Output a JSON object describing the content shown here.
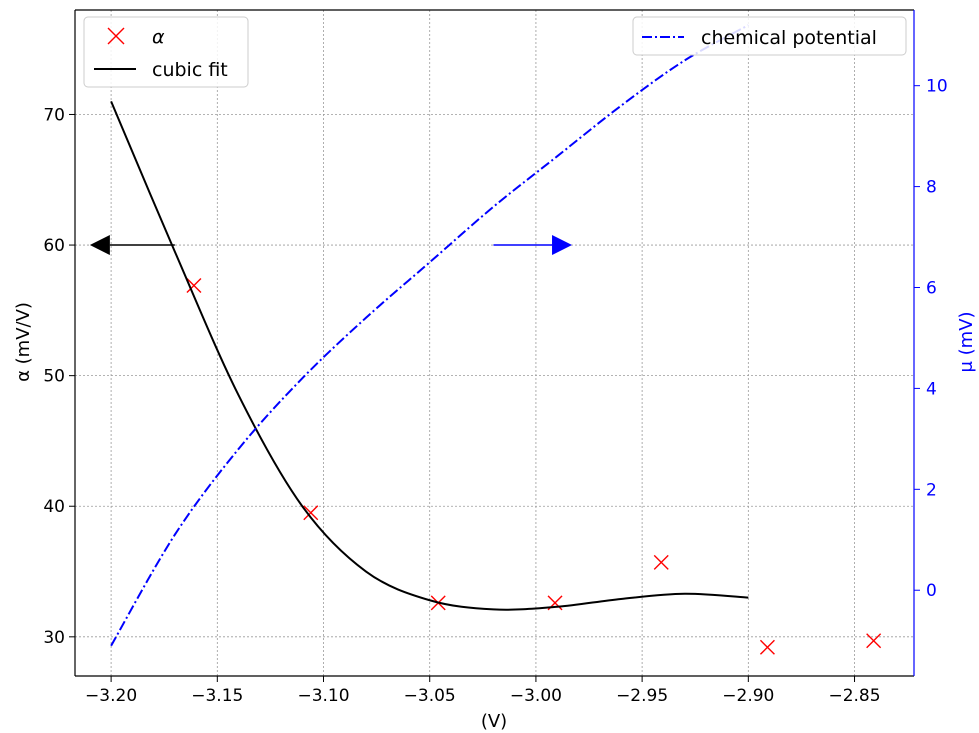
{
  "chart_data": {
    "type": "scatter",
    "xlabel": "(V)",
    "ylabel_left": "α (mV/V)",
    "ylabel_right": "μ (mV)",
    "xlim": [
      -3.217,
      -2.822
    ],
    "ylim_left": [
      27,
      78
    ],
    "ylim_right": [
      -1.7,
      11.5
    ],
    "x_ticks": [
      -3.2,
      -3.15,
      -3.1,
      -3.05,
      -3.0,
      -2.95,
      -2.9,
      -2.85
    ],
    "x_tick_labels": [
      "−3.20",
      "−3.15",
      "−3.10",
      "−3.05",
      "−3.00",
      "−2.95",
      "−2.90",
      "−2.85"
    ],
    "y_left_ticks": [
      30,
      40,
      50,
      60,
      70
    ],
    "y_left_tick_labels": [
      "30",
      "40",
      "50",
      "60",
      "70"
    ],
    "y_right_ticks": [
      0,
      2,
      4,
      6,
      8,
      10
    ],
    "y_right_tick_labels": [
      "0",
      "2",
      "4",
      "6",
      "8",
      "10"
    ],
    "grid": true,
    "series": [
      {
        "name": "α",
        "kind": "scatter",
        "axis": "left",
        "marker": "x",
        "color": "#ff0000",
        "x": [
          -3.161,
          -3.106,
          -3.046,
          -2.991,
          -2.941,
          -2.891,
          -2.841
        ],
        "y": [
          56.9,
          39.5,
          32.6,
          32.6,
          35.7,
          29.2,
          29.7
        ]
      },
      {
        "name": "cubic fit",
        "kind": "line",
        "axis": "left",
        "color": "#000000",
        "x": [
          -3.2,
          -3.17,
          -3.14,
          -3.11,
          -3.08,
          -3.05,
          -3.02,
          -2.99,
          -2.96,
          -2.93,
          -2.9
        ],
        "y": [
          71.0,
          59.5,
          48.5,
          40.0,
          35.0,
          32.8,
          32.1,
          32.3,
          32.9,
          33.3,
          33.0
        ]
      },
      {
        "name": "chemical potential",
        "kind": "line",
        "axis": "right",
        "style": "dashdot",
        "color": "#0000ff",
        "x": [
          -3.2,
          -3.17,
          -3.14,
          -3.11,
          -3.08,
          -3.05,
          -3.02,
          -2.99,
          -2.96,
          -2.93,
          -2.9
        ],
        "y": [
          -1.1,
          1.1,
          2.8,
          4.2,
          5.4,
          6.5,
          7.6,
          8.6,
          9.6,
          10.5,
          11.2
        ]
      }
    ],
    "annotations": [
      {
        "kind": "arrow",
        "axis": "left",
        "direction": "left",
        "color": "#000000",
        "from": [
          -3.17,
          60
        ],
        "to": [
          -3.21,
          60
        ]
      },
      {
        "kind": "arrow",
        "axis": "left",
        "direction": "right",
        "color": "#0000ff",
        "from": [
          -3.02,
          60
        ],
        "to": [
          -2.983,
          60
        ]
      }
    ],
    "legends": [
      {
        "placement": "top-left",
        "entries": [
          "α",
          "cubic fit"
        ]
      },
      {
        "placement": "top-right",
        "entries": [
          "chemical potential"
        ]
      }
    ]
  }
}
